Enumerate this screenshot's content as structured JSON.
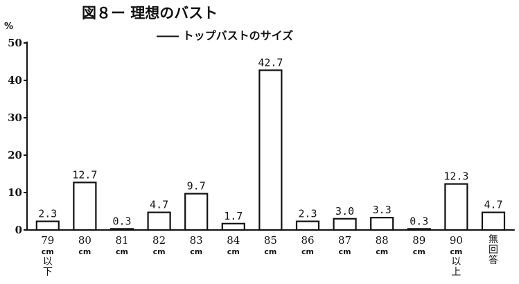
{
  "chart_data": {
    "type": "bar",
    "title": "図８ー 理想のバスト",
    "subtitle": "―― トップバストのサイズ",
    "ylabel": "%",
    "ylim": [
      0,
      50
    ],
    "yticks": [
      "0",
      "10",
      "20",
      "30",
      "40",
      "50"
    ],
    "grid": false,
    "categories": [
      {
        "main": "79",
        "sub": "cm",
        "extra": [
          "以",
          "下"
        ]
      },
      {
        "main": "80",
        "sub": "cm",
        "extra": []
      },
      {
        "main": "81",
        "sub": "cm",
        "extra": []
      },
      {
        "main": "82",
        "sub": "cm",
        "extra": []
      },
      {
        "main": "83",
        "sub": "cm",
        "extra": []
      },
      {
        "main": "84",
        "sub": "cm",
        "extra": []
      },
      {
        "main": "85",
        "sub": "cm",
        "extra": []
      },
      {
        "main": "86",
        "sub": "cm",
        "extra": []
      },
      {
        "main": "87",
        "sub": "cm",
        "extra": []
      },
      {
        "main": "88",
        "sub": "cm",
        "extra": []
      },
      {
        "main": "89",
        "sub": "cm",
        "extra": []
      },
      {
        "main": "90",
        "sub": "cm",
        "extra": [
          "以",
          "上"
        ]
      },
      {
        "main": "",
        "sub": "",
        "extra": [
          "無",
          "回",
          "答"
        ]
      }
    ],
    "values": [
      2.3,
      12.7,
      0.3,
      4.7,
      9.7,
      1.7,
      42.7,
      2.3,
      3.0,
      3.3,
      0.3,
      12.3,
      4.7
    ],
    "value_labels": [
      "2.3",
      "12.7",
      "0.3",
      "4.7",
      "9.7",
      "1.7",
      "42.7",
      "2.3",
      "3.0",
      "3.3",
      "0.3",
      "12.3",
      "4.7"
    ]
  }
}
